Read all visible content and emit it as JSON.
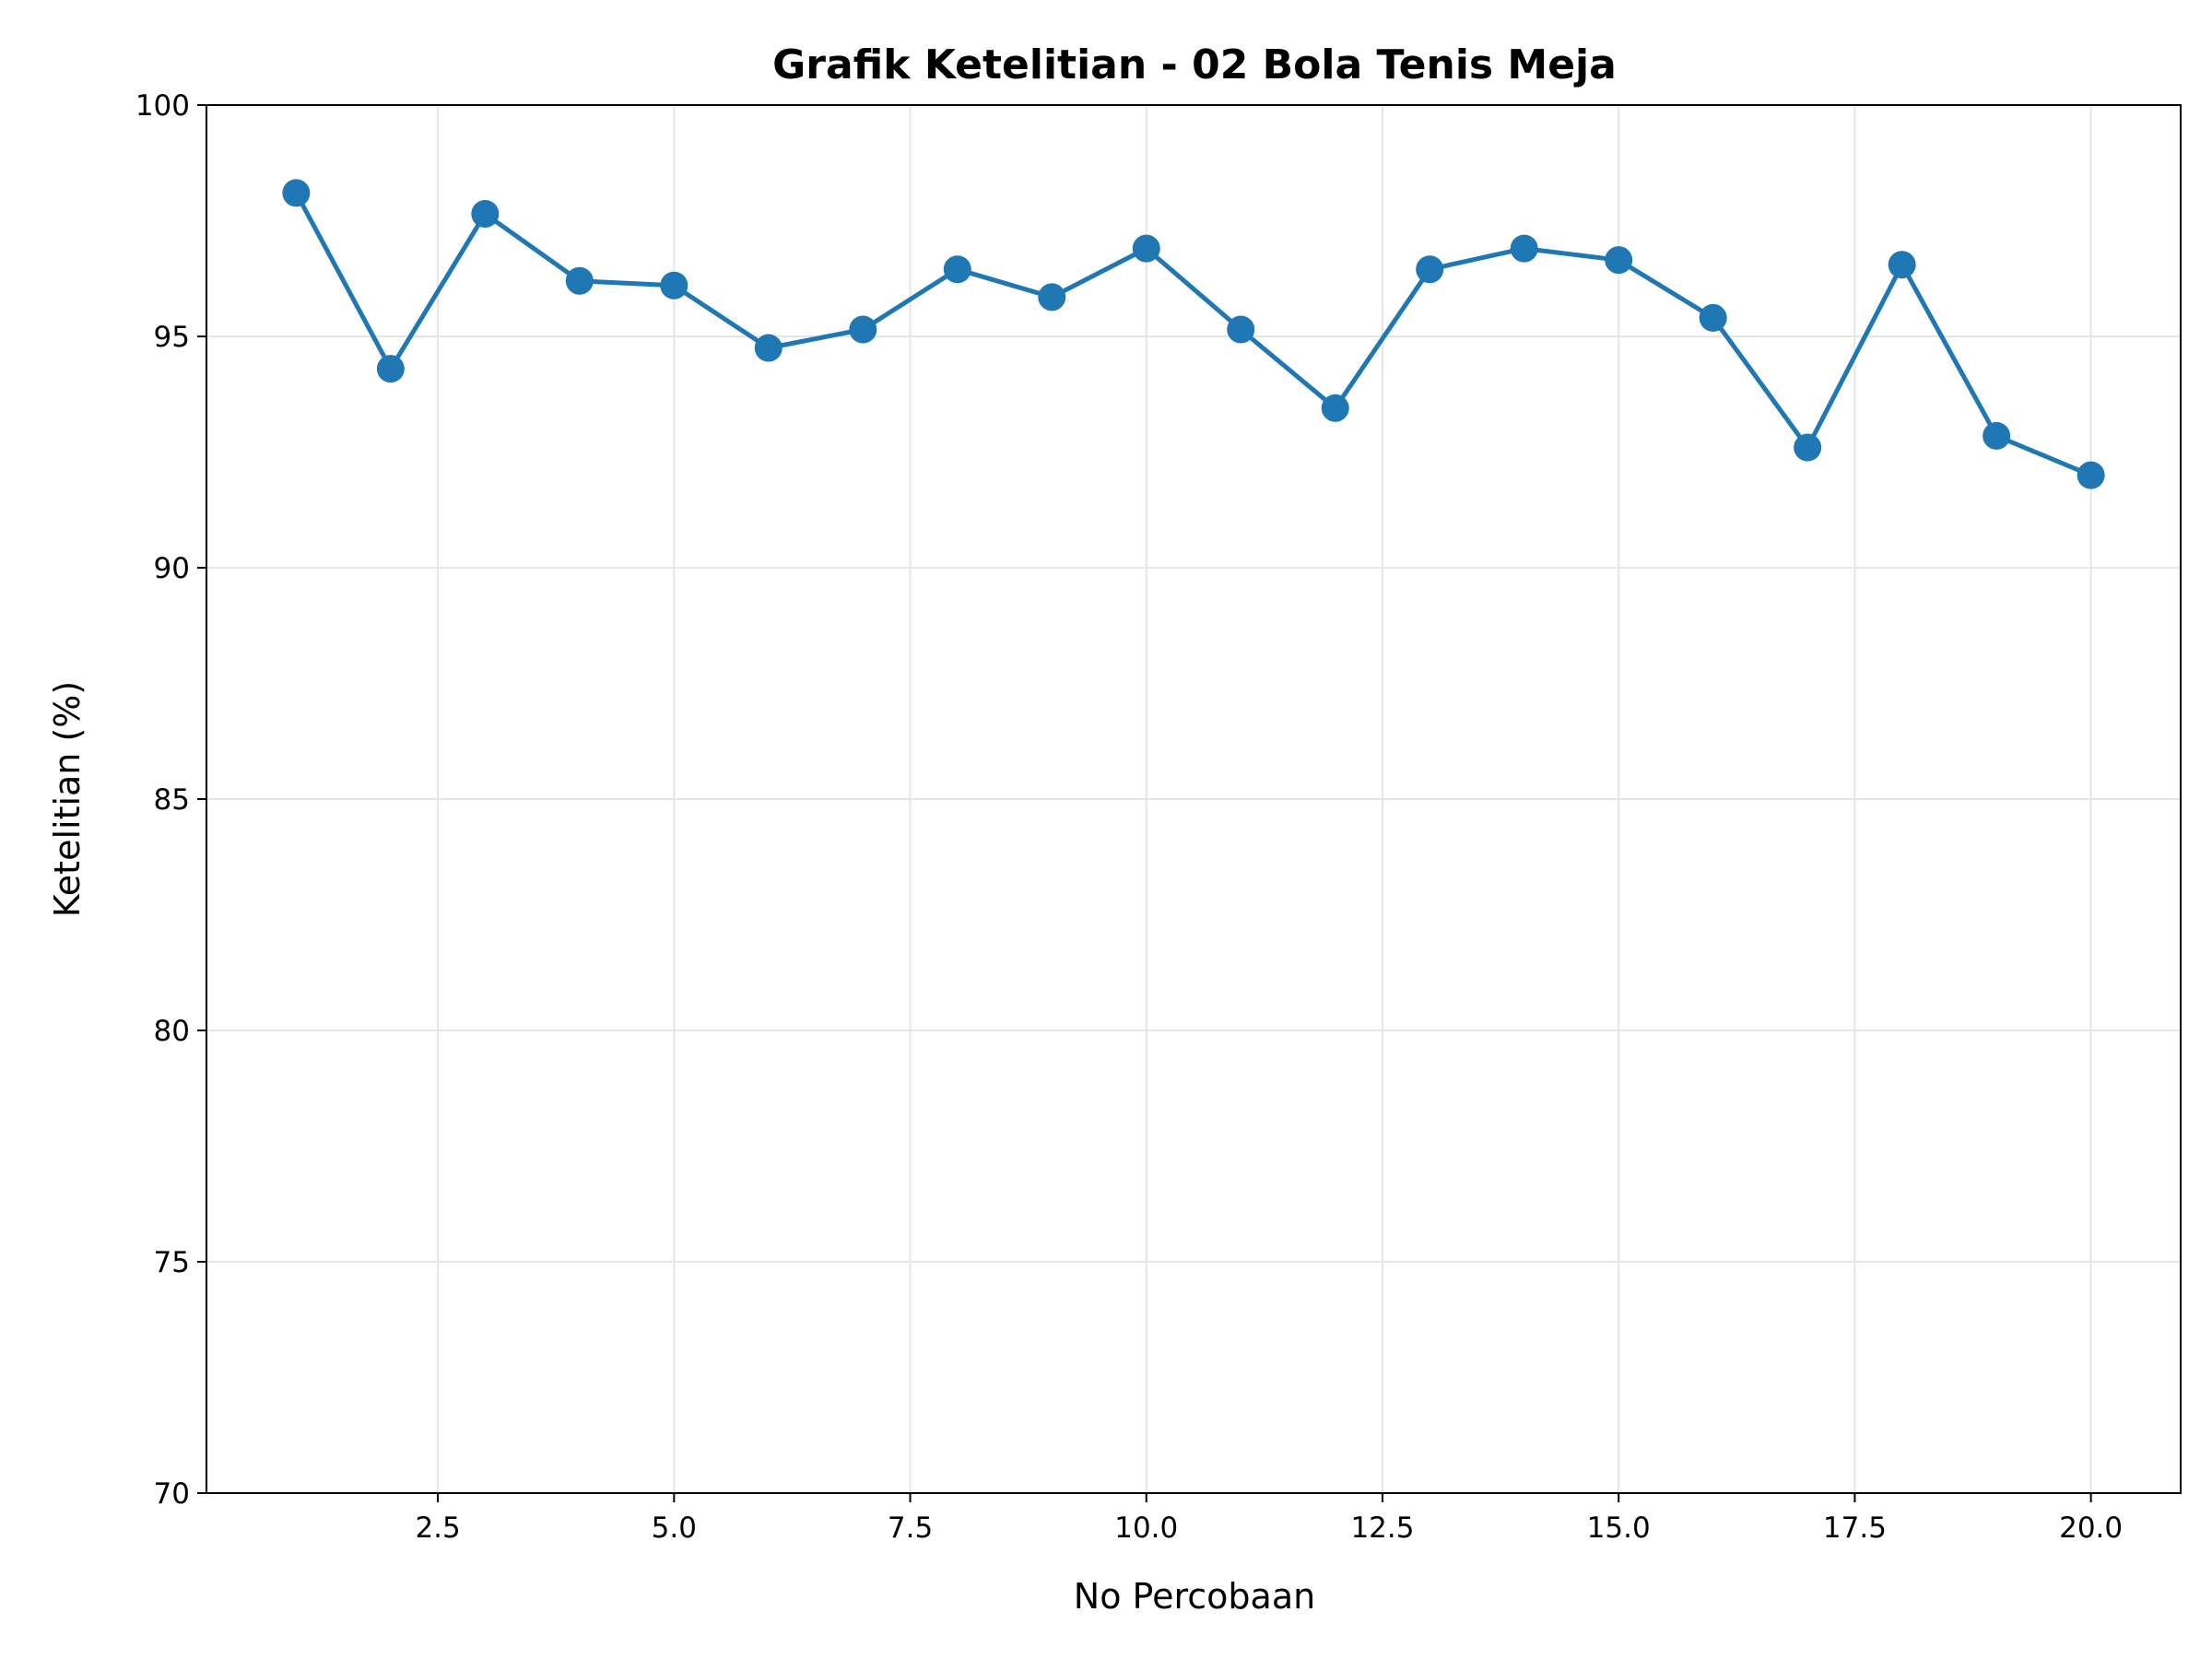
{
  "chart_data": {
    "type": "line",
    "title": "Grafik Ketelitian - 02 Bola Tenis Meja",
    "xlabel": "No Percobaan",
    "ylabel": "Ketelitian (%)",
    "xlim": [
      0.05,
      20.95
    ],
    "ylim": [
      70,
      100
    ],
    "xticks": [
      2.5,
      5.0,
      7.5,
      10.0,
      12.5,
      15.0,
      17.5,
      20.0
    ],
    "xtick_labels": [
      "2.5",
      "5.0",
      "7.5",
      "10.0",
      "12.5",
      "15.0",
      "17.5",
      "20.0"
    ],
    "yticks": [
      70,
      75,
      80,
      85,
      90,
      95,
      100
    ],
    "ytick_labels": [
      "70",
      "75",
      "80",
      "85",
      "90",
      "95",
      "100"
    ],
    "grid": true,
    "series": [
      {
        "name": "Ketelitian",
        "color": "#1f77b4",
        "marker": "circle",
        "x": [
          1,
          2,
          3,
          4,
          5,
          6,
          7,
          8,
          9,
          10,
          11,
          12,
          13,
          14,
          15,
          16,
          17,
          18,
          19,
          20
        ],
        "values": [
          98.1,
          94.3,
          97.65,
          96.2,
          96.1,
          94.75,
          95.15,
          96.45,
          95.85,
          96.9,
          95.15,
          93.45,
          96.45,
          96.9,
          96.65,
          95.4,
          92.6,
          96.55,
          92.85,
          92.0
        ]
      }
    ]
  }
}
